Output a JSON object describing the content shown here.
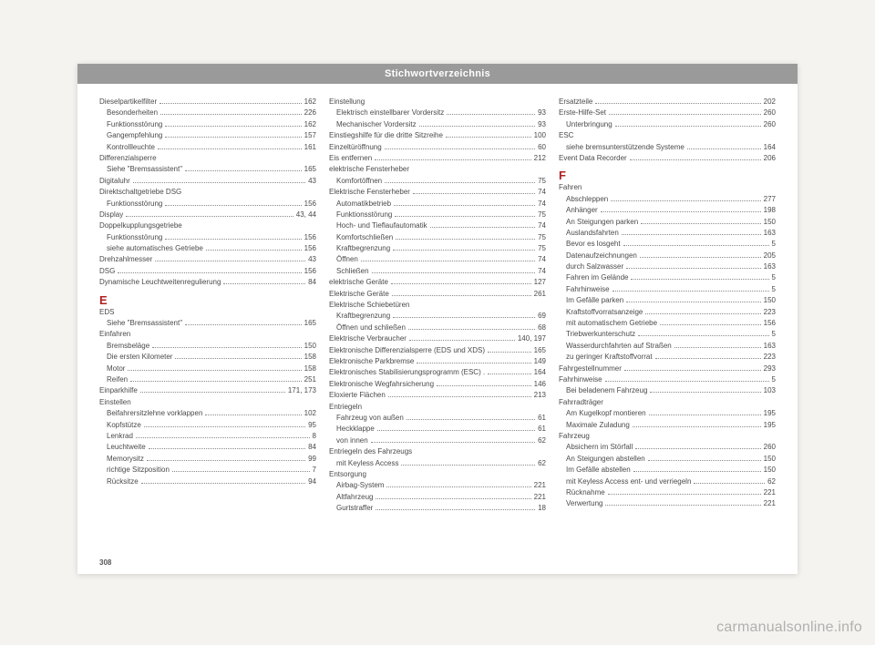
{
  "header": {
    "title": "Stichwortverzeichnis"
  },
  "pagenum": "308",
  "watermark": "carmanualsonline.info",
  "columns": [
    {
      "items": [
        {
          "type": "entry",
          "label": "Dieselpartikelfilter",
          "page": "162"
        },
        {
          "type": "entry",
          "sub": true,
          "label": "Besonderheiten",
          "page": "226"
        },
        {
          "type": "entry",
          "sub": true,
          "label": "Funktionsstörung",
          "page": "162"
        },
        {
          "type": "entry",
          "sub": true,
          "label": "Gangempfehlung",
          "page": "157"
        },
        {
          "type": "entry",
          "sub": true,
          "label": "Kontrollleuchte",
          "page": "161"
        },
        {
          "type": "plain",
          "label": "Differenzialsperre"
        },
        {
          "type": "entry",
          "sub": true,
          "label": "Siehe \"Bremsassistent\"",
          "page": "165"
        },
        {
          "type": "entry",
          "label": "Digitaluhr",
          "page": "43"
        },
        {
          "type": "plain",
          "label": "Direktschaltgetriebe DSG"
        },
        {
          "type": "entry",
          "sub": true,
          "label": "Funktionsstörung",
          "page": "156"
        },
        {
          "type": "entry",
          "label": "Display",
          "page": "43, 44"
        },
        {
          "type": "plain",
          "label": "Doppelkupplungsgetriebe"
        },
        {
          "type": "entry",
          "sub": true,
          "label": "Funktionsstörung",
          "page": "156"
        },
        {
          "type": "entry",
          "sub": true,
          "label": "siehe automatisches Getriebe",
          "page": "156"
        },
        {
          "type": "entry",
          "label": "Drehzahlmesser",
          "page": "43"
        },
        {
          "type": "entry",
          "label": "DSG",
          "page": "156"
        },
        {
          "type": "entry",
          "label": "Dynamische Leuchtweitenregulierung",
          "page": "84"
        },
        {
          "type": "letter",
          "label": "E"
        },
        {
          "type": "plain",
          "label": "EDS"
        },
        {
          "type": "entry",
          "sub": true,
          "label": "Siehe \"Bremsassistent\"",
          "page": "165"
        },
        {
          "type": "plain",
          "label": "Einfahren"
        },
        {
          "type": "entry",
          "sub": true,
          "label": "Bremsbeläge",
          "page": "150"
        },
        {
          "type": "entry",
          "sub": true,
          "label": "Die ersten Kilometer",
          "page": "158"
        },
        {
          "type": "entry",
          "sub": true,
          "label": "Motor",
          "page": "158"
        },
        {
          "type": "entry",
          "sub": true,
          "label": "Reifen",
          "page": "251"
        },
        {
          "type": "entry",
          "label": "Einparkhilfe",
          "page": "171, 173"
        },
        {
          "type": "plain",
          "label": "Einstellen"
        },
        {
          "type": "entry",
          "sub": true,
          "label": "Beifahrersitzlehne vorklappen",
          "page": "102"
        },
        {
          "type": "entry",
          "sub": true,
          "label": "Kopfstütze",
          "page": "95"
        },
        {
          "type": "entry",
          "sub": true,
          "label": "Lenkrad",
          "page": "8"
        },
        {
          "type": "entry",
          "sub": true,
          "label": "Leuchtweite",
          "page": "84"
        },
        {
          "type": "entry",
          "sub": true,
          "label": "Memorysitz",
          "page": "99"
        },
        {
          "type": "entry",
          "sub": true,
          "label": "richtige Sitzposition",
          "page": "7"
        },
        {
          "type": "entry",
          "sub": true,
          "label": "Rücksitze",
          "page": "94"
        }
      ]
    },
    {
      "items": [
        {
          "type": "plain",
          "label": "Einstellung"
        },
        {
          "type": "entry",
          "sub": true,
          "label": "Elektrisch einstellbarer Vordersitz",
          "page": "93"
        },
        {
          "type": "entry",
          "sub": true,
          "label": "Mechanischer Vordersitz",
          "page": "93"
        },
        {
          "type": "entry",
          "label": "Einstiegshilfe für die dritte Sitzreihe",
          "page": "100"
        },
        {
          "type": "entry",
          "label": "Einzeltüröffnung",
          "page": "60"
        },
        {
          "type": "entry",
          "label": "Eis entfernen",
          "page": "212"
        },
        {
          "type": "plain",
          "label": "elektrische Fensterheber"
        },
        {
          "type": "entry",
          "sub": true,
          "label": "Komfortöffnen",
          "page": "75"
        },
        {
          "type": "entry",
          "label": "Elektrische Fensterheber",
          "page": "74"
        },
        {
          "type": "entry",
          "sub": true,
          "label": "Automatikbetrieb",
          "page": "74"
        },
        {
          "type": "entry",
          "sub": true,
          "label": "Funktionsstörung",
          "page": "75"
        },
        {
          "type": "entry",
          "sub": true,
          "label": "Hoch- und Tieflaufautomatik",
          "page": "74"
        },
        {
          "type": "entry",
          "sub": true,
          "label": "Komfortschließen",
          "page": "75"
        },
        {
          "type": "entry",
          "sub": true,
          "label": "Kraftbegrenzung",
          "page": "75"
        },
        {
          "type": "entry",
          "sub": true,
          "label": "Öffnen",
          "page": "74"
        },
        {
          "type": "entry",
          "sub": true,
          "label": "Schließen",
          "page": "74"
        },
        {
          "type": "entry",
          "label": "elektrische Geräte",
          "page": "127"
        },
        {
          "type": "entry",
          "label": "Elektrische Geräte",
          "page": "261"
        },
        {
          "type": "plain",
          "label": "Elektrische Schiebetüren"
        },
        {
          "type": "entry",
          "sub": true,
          "label": "Kraftbegrenzung",
          "page": "69"
        },
        {
          "type": "entry",
          "sub": true,
          "label": "Öffnen und schließen",
          "page": "68"
        },
        {
          "type": "entry",
          "label": "Elektrische Verbraucher",
          "page": "140, 197"
        },
        {
          "type": "entry",
          "label": "Elektronische Differenzialsperre (EDS und XDS)",
          "page": "165"
        },
        {
          "type": "entry",
          "label": "Elektronische Parkbremse",
          "page": "149"
        },
        {
          "type": "entry",
          "label": "Elektronisches Stabilisierungsprogramm (ESC) .",
          "page": "164"
        },
        {
          "type": "entry",
          "label": "Elektronische Wegfahrsicherung",
          "page": "146"
        },
        {
          "type": "entry",
          "label": "Eloxierte Flächen",
          "page": "213"
        },
        {
          "type": "plain",
          "label": "Entriegeln"
        },
        {
          "type": "entry",
          "sub": true,
          "label": "Fahrzeug von außen",
          "page": "61"
        },
        {
          "type": "entry",
          "sub": true,
          "label": "Heckklappe",
          "page": "61"
        },
        {
          "type": "entry",
          "sub": true,
          "label": "von innen",
          "page": "62"
        },
        {
          "type": "plain",
          "label": "Entriegeln des Fahrzeugs"
        },
        {
          "type": "entry",
          "sub": true,
          "label": "mit Keyless Access",
          "page": "62"
        },
        {
          "type": "plain",
          "label": "Entsorgung"
        },
        {
          "type": "entry",
          "sub": true,
          "label": "Airbag-System",
          "page": "221"
        },
        {
          "type": "entry",
          "sub": true,
          "label": "Altfahrzeug",
          "page": "221"
        },
        {
          "type": "entry",
          "sub": true,
          "label": "Gurtstraffer",
          "page": "18"
        }
      ]
    },
    {
      "items": [
        {
          "type": "entry",
          "label": "Ersatzteile",
          "page": "202"
        },
        {
          "type": "entry",
          "label": "Erste-Hilfe-Set",
          "page": "260"
        },
        {
          "type": "entry",
          "sub": true,
          "label": "Unterbringung",
          "page": "260"
        },
        {
          "type": "plain",
          "label": "ESC"
        },
        {
          "type": "entry",
          "sub": true,
          "label": "siehe bremsunterstützende Systeme",
          "page": "164"
        },
        {
          "type": "entry",
          "label": "Event Data Recorder",
          "page": "206"
        },
        {
          "type": "letter",
          "label": "F"
        },
        {
          "type": "plain",
          "label": "Fahren"
        },
        {
          "type": "entry",
          "sub": true,
          "label": "Abschleppen",
          "page": "277"
        },
        {
          "type": "entry",
          "sub": true,
          "label": "Anhänger",
          "page": "198"
        },
        {
          "type": "entry",
          "sub": true,
          "label": "An Steigungen parken",
          "page": "150"
        },
        {
          "type": "entry",
          "sub": true,
          "label": "Auslandsfahrten",
          "page": "163"
        },
        {
          "type": "entry",
          "sub": true,
          "label": "Bevor es losgeht",
          "page": "5"
        },
        {
          "type": "entry",
          "sub": true,
          "label": "Datenaufzeichnungen",
          "page": "205"
        },
        {
          "type": "entry",
          "sub": true,
          "label": "durch Salzwasser",
          "page": "163"
        },
        {
          "type": "entry",
          "sub": true,
          "label": "Fahren im Gelände",
          "page": "5"
        },
        {
          "type": "entry",
          "sub": true,
          "label": "Fahrhinweise",
          "page": "5"
        },
        {
          "type": "entry",
          "sub": true,
          "label": "Im Gefälle parken",
          "page": "150"
        },
        {
          "type": "entry",
          "sub": true,
          "label": "Kraftstoffvorratsanzeige",
          "page": "223"
        },
        {
          "type": "entry",
          "sub": true,
          "label": "mit automatischem Getriebe",
          "page": "156"
        },
        {
          "type": "entry",
          "sub": true,
          "label": "Triebwerkunterschutz",
          "page": "5"
        },
        {
          "type": "entry",
          "sub": true,
          "label": "Wasserdurchfahrten auf Straßen",
          "page": "163"
        },
        {
          "type": "entry",
          "sub": true,
          "label": "zu geringer Kraftstoffvorrat",
          "page": "223"
        },
        {
          "type": "entry",
          "label": "Fahrgestellnummer",
          "page": "293"
        },
        {
          "type": "entry",
          "label": "Fahrhinweise",
          "page": "5"
        },
        {
          "type": "entry",
          "sub": true,
          "label": "Bei beladenem Fahrzeug",
          "page": "103"
        },
        {
          "type": "plain",
          "label": "Fahrradträger"
        },
        {
          "type": "entry",
          "sub": true,
          "label": "Am Kugelkopf montieren",
          "page": "195"
        },
        {
          "type": "entry",
          "sub": true,
          "label": "Maximale Zuladung",
          "page": "195"
        },
        {
          "type": "plain",
          "label": "Fahrzeug"
        },
        {
          "type": "entry",
          "sub": true,
          "label": "Absichern im Störfall",
          "page": "260"
        },
        {
          "type": "entry",
          "sub": true,
          "label": "An Steigungen abstellen",
          "page": "150"
        },
        {
          "type": "entry",
          "sub": true,
          "label": "Im Gefälle abstellen",
          "page": "150"
        },
        {
          "type": "entry",
          "sub": true,
          "label": "mit Keyless Access ent- und verriegeln",
          "page": "62"
        },
        {
          "type": "entry",
          "sub": true,
          "label": "Rücknahme",
          "page": "221"
        },
        {
          "type": "entry",
          "sub": true,
          "label": "Verwertung",
          "page": "221"
        }
      ]
    }
  ]
}
